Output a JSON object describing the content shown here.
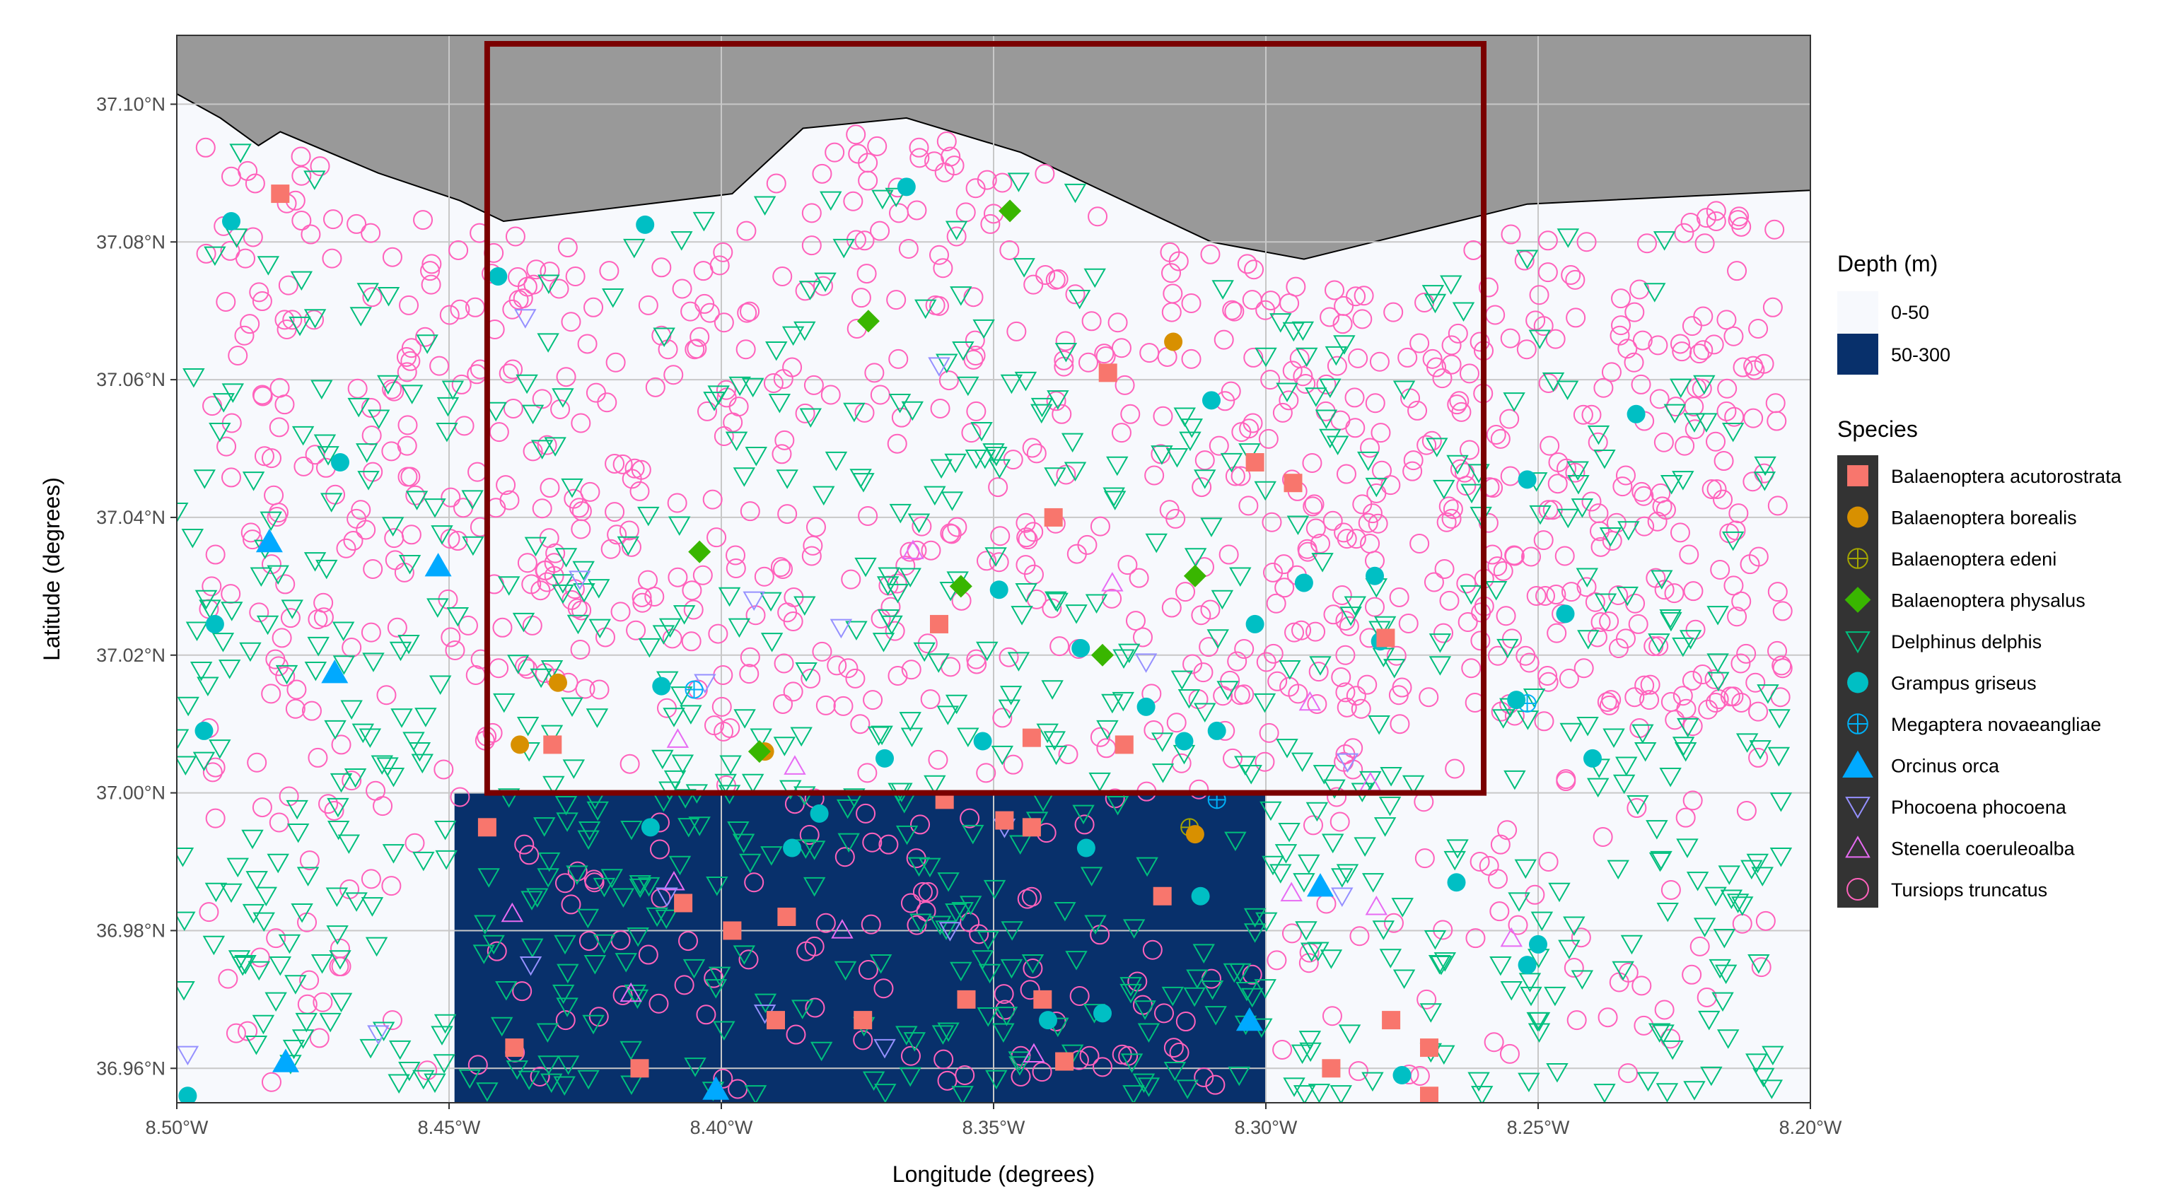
{
  "chart_data": {
    "type": "scatter",
    "xlabel": "Longitude (degrees)",
    "ylabel": "Latitude (degrees)",
    "xlim": [
      -8.5,
      -8.2
    ],
    "ylim": [
      36.955,
      37.11
    ],
    "x_ticks": [
      {
        "value": -8.5,
        "label": "8.50°W"
      },
      {
        "value": -8.45,
        "label": "8.45°W"
      },
      {
        "value": -8.4,
        "label": "8.40°W"
      },
      {
        "value": -8.35,
        "label": "8.35°W"
      },
      {
        "value": -8.3,
        "label": "8.30°W"
      },
      {
        "value": -8.25,
        "label": "8.25°W"
      },
      {
        "value": -8.2,
        "label": "8.20°W"
      }
    ],
    "y_ticks": [
      {
        "value": 36.96,
        "label": "36.96°N"
      },
      {
        "value": 36.98,
        "label": "36.98°N"
      },
      {
        "value": 37.0,
        "label": "37.00°N"
      },
      {
        "value": 37.02,
        "label": "37.02°N"
      },
      {
        "value": 37.04,
        "label": "37.04°N"
      },
      {
        "value": 37.06,
        "label": "37.06°N"
      },
      {
        "value": 37.08,
        "label": "37.08°N"
      },
      {
        "value": 37.1,
        "label": "37.10°N"
      }
    ],
    "grid": true,
    "colors": {
      "panel": "#f7f9fd",
      "land": "#999999",
      "grid": "#c8c8c8",
      "deep_water": "#08306b",
      "study_area_box": "#7a0000",
      "legend_key_bg": "#333333"
    },
    "land_boundary": [
      [
        -8.5,
        37.1015
      ],
      [
        -8.492,
        37.098
      ],
      [
        -8.485,
        37.094
      ],
      [
        -8.481,
        37.096
      ],
      [
        -8.463,
        37.09
      ],
      [
        -8.448,
        37.086
      ],
      [
        -8.44,
        37.083
      ],
      [
        -8.398,
        37.087
      ],
      [
        -8.385,
        37.0965
      ],
      [
        -8.366,
        37.098
      ],
      [
        -8.345,
        37.093
      ],
      [
        -8.31,
        37.08
      ],
      [
        -8.293,
        37.0775
      ],
      [
        -8.252,
        37.0855
      ],
      [
        -8.2,
        37.0875
      ]
    ],
    "depth_layers": [
      {
        "name": "0-50",
        "color": "#f7f9fd"
      },
      {
        "name": "50-300",
        "color": "#08306b",
        "area": {
          "lon_min": -8.449,
          "lon_max": -8.3,
          "lat_min": 36.955,
          "lat_max": 37.0
        }
      }
    ],
    "study_area": {
      "lon_min": -8.443,
      "lon_max": -8.26,
      "lat_min": 37.0,
      "lat_max": 37.11
    },
    "legends": {
      "depth": {
        "title": "Depth (m)",
        "placement": "right"
      },
      "species": {
        "title": "Species",
        "placement": "right"
      }
    },
    "series": [
      {
        "name": "Balaenoptera acutorostrata",
        "color": "#f8766d",
        "shape": "square-filled",
        "points": [
          [
            -8.481,
            37.087
          ],
          [
            -8.329,
            37.061
          ],
          [
            -8.302,
            37.048
          ],
          [
            -8.295,
            37.045
          ],
          [
            -8.339,
            37.04
          ],
          [
            -8.36,
            37.0245
          ],
          [
            -8.278,
            37.0225
          ],
          [
            -8.343,
            37.008
          ],
          [
            -8.326,
            37.007
          ],
          [
            -8.431,
            37.007
          ],
          [
            -8.359,
            36.999
          ],
          [
            -8.348,
            36.996
          ],
          [
            -8.443,
            36.995
          ],
          [
            -8.343,
            36.995
          ],
          [
            -8.388,
            36.982
          ],
          [
            -8.319,
            36.985
          ],
          [
            -8.398,
            36.98
          ],
          [
            -8.407,
            36.984
          ],
          [
            -8.355,
            36.97
          ],
          [
            -8.341,
            36.97
          ],
          [
            -8.39,
            36.967
          ],
          [
            -8.374,
            36.967
          ],
          [
            -8.438,
            36.963
          ],
          [
            -8.337,
            36.961
          ],
          [
            -8.415,
            36.96
          ],
          [
            -8.277,
            36.967
          ],
          [
            -8.27,
            36.963
          ],
          [
            -8.288,
            36.96
          ],
          [
            -8.27,
            36.956
          ]
        ]
      },
      {
        "name": "Balaenoptera borealis",
        "color": "#d89000",
        "shape": "circle-filled",
        "points": [
          [
            -8.317,
            37.0655
          ],
          [
            -8.43,
            37.016
          ],
          [
            -8.437,
            37.007
          ],
          [
            -8.392,
            37.006
          ],
          [
            -8.313,
            36.994
          ]
        ]
      },
      {
        "name": "Balaenoptera edeni",
        "color": "#a3a500",
        "shape": "circle-plus",
        "points": [
          [
            -8.314,
            36.995
          ]
        ]
      },
      {
        "name": "Balaenoptera physalus",
        "color": "#39b600",
        "shape": "diamond-filled",
        "points": [
          [
            -8.347,
            37.0845
          ],
          [
            -8.373,
            37.0685
          ],
          [
            -8.404,
            37.035
          ],
          [
            -8.356,
            37.03
          ],
          [
            -8.313,
            37.0315
          ],
          [
            -8.33,
            37.02
          ],
          [
            -8.393,
            37.006
          ]
        ]
      },
      {
        "name": "Delphinus delphis",
        "color": "#00bf7d",
        "shape": "triangle-down-open",
        "points": []
      },
      {
        "name": "Grampus griseus",
        "color": "#00bfc4",
        "shape": "circle-filled",
        "points": [
          [
            -8.49,
            37.083
          ],
          [
            -8.414,
            37.0825
          ],
          [
            -8.366,
            37.088
          ],
          [
            -8.441,
            37.075
          ],
          [
            -8.31,
            37.057
          ],
          [
            -8.232,
            37.055
          ],
          [
            -8.47,
            37.048
          ],
          [
            -8.252,
            37.0455
          ],
          [
            -8.349,
            37.0295
          ],
          [
            -8.28,
            37.0315
          ],
          [
            -8.293,
            37.0305
          ],
          [
            -8.245,
            37.026
          ],
          [
            -8.493,
            37.0245
          ],
          [
            -8.334,
            37.021
          ],
          [
            -8.302,
            37.0245
          ],
          [
            -8.279,
            37.022
          ],
          [
            -8.411,
            37.0155
          ],
          [
            -8.322,
            37.0125
          ],
          [
            -8.254,
            37.0135
          ],
          [
            -8.495,
            37.009
          ],
          [
            -8.309,
            37.009
          ],
          [
            -8.315,
            37.0075
          ],
          [
            -8.352,
            37.0075
          ],
          [
            -8.37,
            37.005
          ],
          [
            -8.24,
            37.005
          ],
          [
            -8.382,
            36.997
          ],
          [
            -8.413,
            36.995
          ],
          [
            -8.333,
            36.992
          ],
          [
            -8.387,
            36.992
          ],
          [
            -8.312,
            36.985
          ],
          [
            -8.265,
            36.987
          ],
          [
            -8.25,
            36.978
          ],
          [
            -8.252,
            36.975
          ],
          [
            -8.33,
            36.968
          ],
          [
            -8.34,
            36.967
          ],
          [
            -8.498,
            36.956
          ],
          [
            -8.275,
            36.959
          ]
        ]
      },
      {
        "name": "Megaptera novaeangliae",
        "color": "#00b0f6",
        "shape": "circle-plus",
        "points": []
      },
      {
        "name": "Orcinus orca",
        "color": "#00a9ff",
        "shape": "triangle-up-filled",
        "points": [
          [
            -8.483,
            37.0365
          ],
          [
            -8.452,
            37.033
          ],
          [
            -8.471,
            37.0175
          ],
          [
            -8.29,
            36.9865
          ],
          [
            -8.303,
            36.967
          ],
          [
            -8.48,
            36.961
          ],
          [
            -8.401,
            36.957
          ]
        ]
      },
      {
        "name": "Phocoena phocoena",
        "color": "#9590ff",
        "shape": "triangle-down-open",
        "points": [
          [
            -8.436,
            37.069
          ],
          [
            -8.36,
            37.062
          ],
          [
            -8.394,
            37.028
          ],
          [
            -8.426,
            37.031
          ],
          [
            -8.378,
            37.024
          ],
          [
            -8.403,
            37.016
          ],
          [
            -8.322,
            37.019
          ],
          [
            -8.285,
            37.0045
          ],
          [
            -8.348,
            36.995
          ],
          [
            -8.41,
            36.985
          ],
          [
            -8.358,
            36.98
          ],
          [
            -8.286,
            36.985
          ],
          [
            -8.435,
            36.975
          ],
          [
            -8.392,
            36.968
          ],
          [
            -8.37,
            36.963
          ],
          [
            -8.463,
            36.965
          ],
          [
            -8.498,
            36.962
          ]
        ]
      },
      {
        "name": "Stenella coeruleoalba",
        "color": "#e76bf3",
        "shape": "triangle-up-open",
        "points": []
      },
      {
        "name": "Tursiops truncatus",
        "color": "#ff62bc",
        "shape": "circle-open",
        "points": []
      }
    ]
  }
}
